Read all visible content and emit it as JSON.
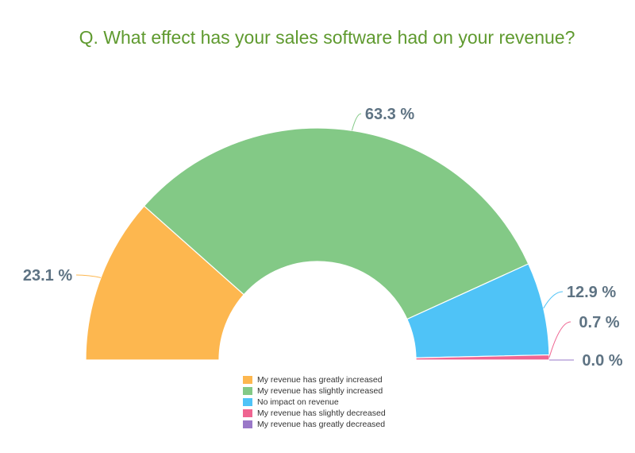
{
  "chart_data": {
    "type": "pie",
    "variant": "semi-donut",
    "title": "Q. What effect has your sales software had on your revenue?",
    "title_color": "#5f9a2f",
    "label_suffix": " %",
    "legend_position": "bottom",
    "slices": [
      {
        "label": "My revenue has greatly increased",
        "value": 23.1,
        "color": "#fdb74f"
      },
      {
        "label": "My revenue has slightly increased",
        "value": 63.3,
        "color": "#83c986"
      },
      {
        "label": "No impact on revenue",
        "value": 12.9,
        "color": "#4fc3f7"
      },
      {
        "label": "My revenue has slightly decreased",
        "value": 0.7,
        "color": "#ef6591"
      },
      {
        "label": "My revenue has greatly decreased",
        "value": 0.0,
        "color": "#9a78c8"
      }
    ]
  }
}
